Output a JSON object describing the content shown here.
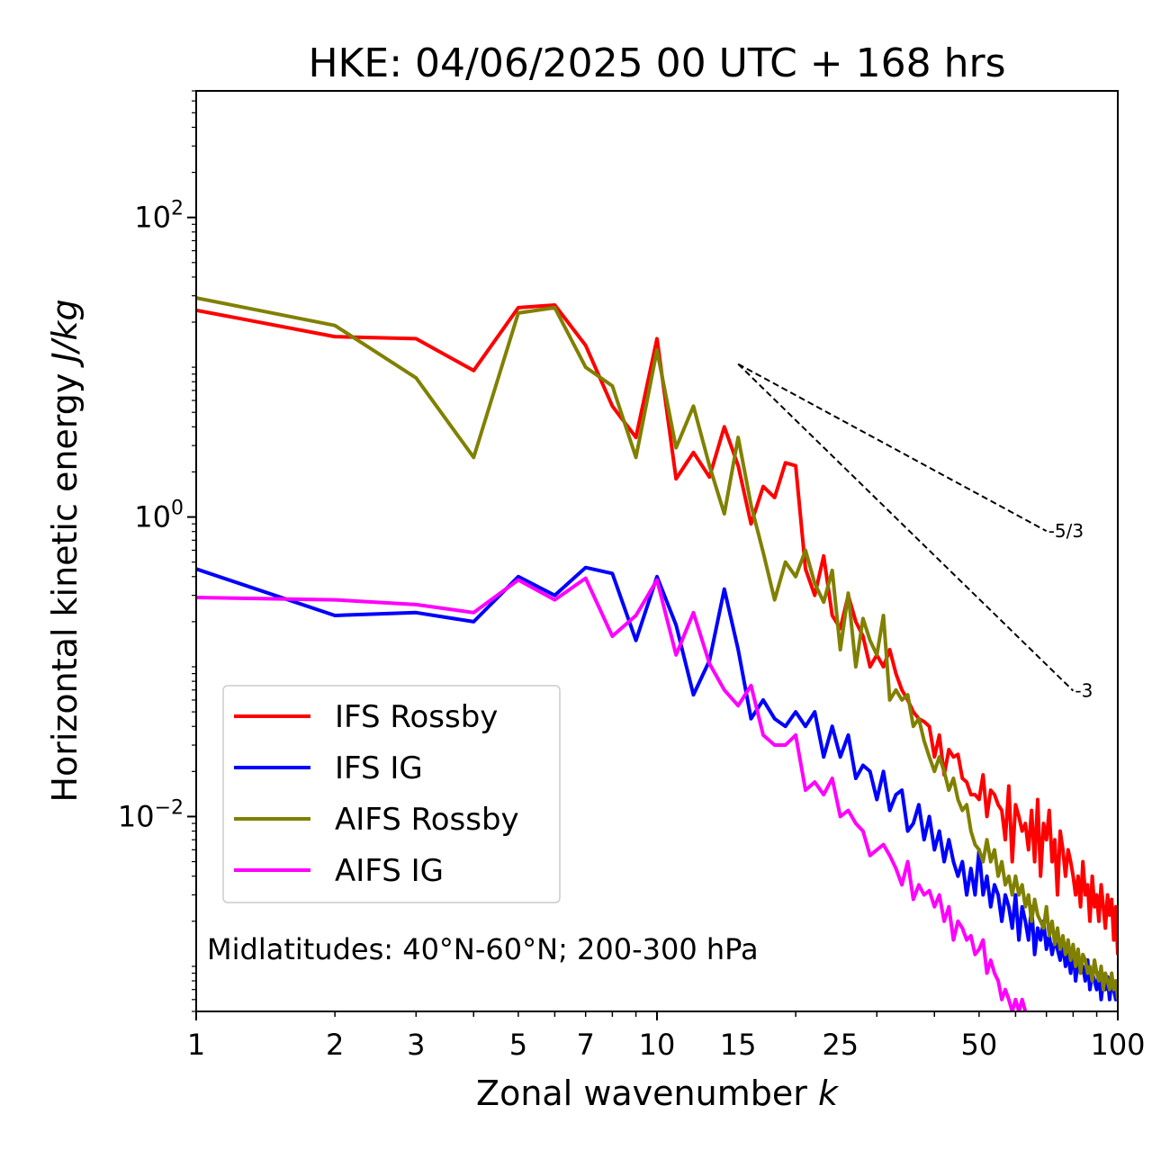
{
  "chart_data": {
    "type": "line",
    "title": "HKE: 04/06/2025 00 UTC + 168 hrs",
    "xlabel": "Zonal wavenumber",
    "xlabel_italic": "k",
    "ylabel": "Horizontal kinetic energy",
    "ylabel_italic": "J/kg",
    "xscale": "log",
    "yscale": "log",
    "xlim": [
      1,
      100
    ],
    "ylim": [
      0.0005,
      700
    ],
    "x_ticks": [
      {
        "value": 1,
        "label": "1"
      },
      {
        "value": 2,
        "label": "2"
      },
      {
        "value": 3,
        "label": "3"
      },
      {
        "value": 5,
        "label": "5"
      },
      {
        "value": 7,
        "label": "7"
      },
      {
        "value": 10,
        "label": "10"
      },
      {
        "value": 15,
        "label": "15"
      },
      {
        "value": 25,
        "label": "25"
      },
      {
        "value": 50,
        "label": "50"
      },
      {
        "value": 100,
        "label": "100"
      }
    ],
    "y_ticks": [
      {
        "value": 100,
        "base": "10",
        "exp": "2"
      },
      {
        "value": 1,
        "base": "10",
        "exp": "0"
      },
      {
        "value": 0.01,
        "base": "10",
        "exp": "−2"
      }
    ],
    "grid": false,
    "legend_position": "lower-left",
    "annotation": "Midlatitudes: 40°N-60°N; 200-300 hPa",
    "reference_lines": [
      {
        "label": "-5/3",
        "slope": -1.6667,
        "x": [
          15,
          70
        ],
        "y_start": 10.5,
        "color": "#000000",
        "style": "dashed"
      },
      {
        "label": "-3",
        "slope": -3,
        "x": [
          15,
          80
        ],
        "y_start": 10.5,
        "color": "#000000",
        "style": "dashed"
      }
    ],
    "series": [
      {
        "name": "IFS Rossby",
        "color": "#ff0000",
        "x": [
          1,
          2,
          3,
          4,
          5,
          6,
          7,
          8,
          9,
          10,
          11,
          12,
          13,
          14,
          15,
          16,
          17,
          18,
          19,
          20,
          21,
          22,
          23,
          24,
          25,
          26,
          27,
          28,
          29,
          30,
          31,
          32,
          33,
          34,
          35,
          36,
          37,
          38,
          39,
          40,
          41,
          42,
          43,
          44,
          45,
          46,
          47,
          48,
          49,
          50,
          51,
          52,
          53,
          54,
          55,
          56,
          57,
          58,
          59,
          60,
          61,
          62,
          63,
          64,
          65,
          66,
          67,
          68,
          69,
          70,
          71,
          72,
          73,
          74,
          75,
          76,
          77,
          78,
          79,
          80,
          81,
          82,
          83,
          84,
          85,
          86,
          87,
          88,
          89,
          90,
          91,
          92,
          93,
          94,
          95,
          96,
          97,
          98,
          99,
          100
        ],
        "y": [
          24,
          16,
          15.5,
          9.5,
          25,
          26,
          14,
          5.5,
          3.4,
          15.5,
          1.8,
          2.7,
          1.85,
          4,
          2.2,
          0.9,
          1.6,
          1.35,
          2.3,
          2.2,
          0.45,
          0.3,
          0.55,
          0.22,
          0.18,
          0.3,
          0.2,
          0.16,
          0.1,
          0.12,
          0.1,
          0.13,
          0.09,
          0.07,
          0.06,
          0.05,
          0.045,
          0.043,
          0.04,
          0.025,
          0.035,
          0.019,
          0.028,
          0.025,
          0.026,
          0.018,
          0.017,
          0.014,
          0.014,
          0.013,
          0.019,
          0.01,
          0.015,
          0.014,
          0.012,
          0.011,
          0.007,
          0.016,
          0.005,
          0.012,
          0.01,
          0.008,
          0.009,
          0.006,
          0.011,
          0.005,
          0.013,
          0.004,
          0.009,
          0.007,
          0.011,
          0.005,
          0.007,
          0.003,
          0.008,
          0.006,
          0.004,
          0.006,
          0.005,
          0.004,
          0.003,
          0.004,
          0.0025,
          0.005,
          0.003,
          0.0035,
          0.002,
          0.004,
          0.0025,
          0.003,
          0.002,
          0.0035,
          0.0025,
          0.0018,
          0.003,
          0.0022,
          0.0028,
          0.0015,
          0.0025,
          0.0012
        ]
      },
      {
        "name": "IFS IG",
        "color": "#0000ff",
        "x": [
          1,
          2,
          3,
          4,
          5,
          6,
          7,
          8,
          9,
          10,
          11,
          12,
          13,
          14,
          15,
          16,
          17,
          18,
          19,
          20,
          21,
          22,
          23,
          24,
          25,
          26,
          27,
          28,
          29,
          30,
          31,
          32,
          33,
          34,
          35,
          36,
          37,
          38,
          39,
          40,
          41,
          42,
          43,
          44,
          45,
          46,
          47,
          48,
          49,
          50,
          51,
          52,
          53,
          54,
          55,
          56,
          57,
          58,
          59,
          60,
          61,
          62,
          63,
          64,
          65,
          66,
          67,
          68,
          69,
          70,
          71,
          72,
          73,
          74,
          75,
          76,
          77,
          78,
          79,
          80,
          81,
          82,
          83,
          84,
          85,
          86,
          87,
          88,
          89,
          90,
          91,
          92,
          93,
          94,
          95,
          96,
          97,
          98,
          99,
          100
        ],
        "y": [
          0.45,
          0.22,
          0.23,
          0.2,
          0.4,
          0.3,
          0.46,
          0.42,
          0.15,
          0.4,
          0.19,
          0.065,
          0.11,
          0.33,
          0.13,
          0.045,
          0.06,
          0.045,
          0.04,
          0.05,
          0.04,
          0.05,
          0.025,
          0.04,
          0.025,
          0.035,
          0.018,
          0.022,
          0.02,
          0.013,
          0.02,
          0.011,
          0.014,
          0.015,
          0.008,
          0.009,
          0.012,
          0.007,
          0.01,
          0.006,
          0.008,
          0.005,
          0.007,
          0.005,
          0.004,
          0.005,
          0.003,
          0.0045,
          0.003,
          0.006,
          0.003,
          0.004,
          0.0025,
          0.0035,
          0.003,
          0.002,
          0.003,
          0.0025,
          0.0018,
          0.003,
          0.0015,
          0.0025,
          0.002,
          0.0015,
          0.0025,
          0.0012,
          0.0018,
          0.0015,
          0.002,
          0.0013,
          0.0016,
          0.0012,
          0.0015,
          0.0013,
          0.0011,
          0.0014,
          0.001,
          0.0012,
          0.0009,
          0.0013,
          0.0008,
          0.0011,
          0.0009,
          0.001,
          0.0008,
          0.0011,
          0.0007,
          0.0009,
          0.0008,
          0.0007,
          0.0009,
          0.0006,
          0.0008,
          0.0007,
          0.00085,
          0.0006,
          0.0008,
          0.0007,
          0.0006,
          0.00065
        ]
      },
      {
        "name": "AIFS Rossby",
        "color": "#808000",
        "x": [
          1,
          2,
          3,
          4,
          5,
          6,
          7,
          8,
          9,
          10,
          11,
          12,
          13,
          14,
          15,
          16,
          17,
          18,
          19,
          20,
          21,
          22,
          23,
          24,
          25,
          26,
          27,
          28,
          29,
          30,
          31,
          32,
          33,
          34,
          35,
          36,
          37,
          38,
          39,
          40,
          41,
          42,
          43,
          44,
          45,
          46,
          47,
          48,
          49,
          50,
          51,
          52,
          53,
          54,
          55,
          56,
          57,
          58,
          59,
          60,
          61,
          62,
          63,
          64,
          65,
          66,
          67,
          68,
          69,
          70,
          71,
          72,
          73,
          74,
          75,
          76,
          77,
          78,
          79,
          80,
          81,
          82,
          83,
          84,
          85,
          86,
          87,
          88,
          89,
          90,
          91,
          92,
          93,
          94,
          95,
          96,
          97,
          98,
          99,
          100
        ],
        "y": [
          29,
          19,
          8.5,
          2.5,
          23,
          25,
          10,
          7.5,
          2.5,
          13,
          2.9,
          5.5,
          2.2,
          1.05,
          3.4,
          1.2,
          0.58,
          0.28,
          0.5,
          0.4,
          0.6,
          0.36,
          0.27,
          0.44,
          0.13,
          0.31,
          0.1,
          0.21,
          0.15,
          0.12,
          0.22,
          0.06,
          0.07,
          0.06,
          0.065,
          0.04,
          0.045,
          0.032,
          0.025,
          0.02,
          0.025,
          0.02,
          0.015,
          0.018,
          0.013,
          0.011,
          0.012,
          0.008,
          0.0065,
          0.006,
          0.005,
          0.007,
          0.005,
          0.006,
          0.004,
          0.005,
          0.0035,
          0.004,
          0.003,
          0.004,
          0.003,
          0.0035,
          0.0025,
          0.003,
          0.002,
          0.0028,
          0.0022,
          0.002,
          0.0018,
          0.0025,
          0.0016,
          0.002,
          0.0014,
          0.0018,
          0.0013,
          0.0016,
          0.0012,
          0.0015,
          0.0011,
          0.0014,
          0.001,
          0.0013,
          0.0009,
          0.0012,
          0.0011,
          0.0009,
          0.001,
          0.0008,
          0.0011,
          0.0009,
          0.0008,
          0.001,
          0.0007,
          0.0009,
          0.0008,
          0.0007,
          0.0009,
          0.0007,
          0.0008,
          0.0006
        ]
      },
      {
        "name": "AIFS IG",
        "color": "#ff00ff",
        "x": [
          1,
          2,
          3,
          4,
          5,
          6,
          7,
          8,
          9,
          10,
          11,
          12,
          13,
          14,
          15,
          16,
          17,
          18,
          19,
          20,
          21,
          22,
          23,
          24,
          25,
          26,
          27,
          28,
          29,
          30,
          31,
          32,
          33,
          34,
          35,
          36,
          37,
          38,
          39,
          40,
          41,
          42,
          43,
          44,
          45,
          46,
          47,
          48,
          49,
          50,
          51,
          52,
          53,
          54,
          55,
          56,
          57,
          58,
          59,
          60,
          61,
          62,
          63
        ],
        "y": [
          0.29,
          0.28,
          0.26,
          0.23,
          0.38,
          0.28,
          0.39,
          0.16,
          0.22,
          0.38,
          0.12,
          0.23,
          0.105,
          0.07,
          0.055,
          0.075,
          0.035,
          0.03,
          0.03,
          0.035,
          0.015,
          0.017,
          0.014,
          0.018,
          0.01,
          0.011,
          0.009,
          0.008,
          0.0055,
          0.006,
          0.0065,
          0.0055,
          0.0045,
          0.0035,
          0.005,
          0.0028,
          0.0035,
          0.003,
          0.0032,
          0.0025,
          0.003,
          0.002,
          0.0025,
          0.0015,
          0.002,
          0.0018,
          0.0015,
          0.0016,
          0.0012,
          0.0013,
          0.0015,
          0.0009,
          0.0011,
          0.0009,
          0.0008,
          0.0006,
          0.0007,
          0.0006,
          0.0005,
          0.0006,
          0.0005,
          0.0006,
          0.0005
        ]
      }
    ]
  }
}
